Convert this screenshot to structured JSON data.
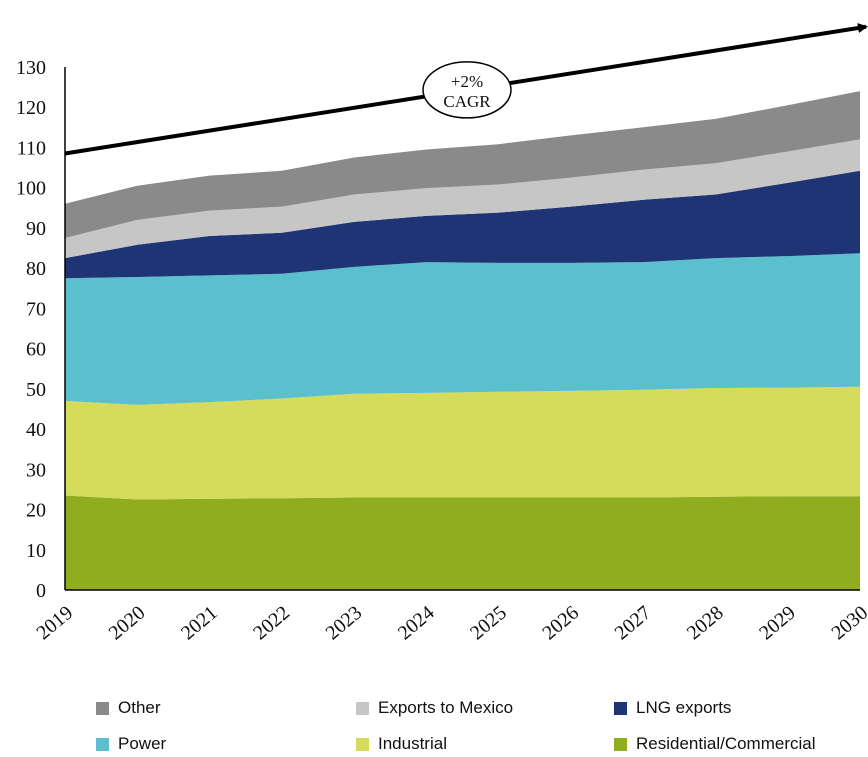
{
  "chart_data": {
    "type": "area",
    "stacked": true,
    "x": [
      "2019",
      "2020",
      "2021",
      "2022",
      "2023",
      "2024",
      "2025",
      "2026",
      "2027",
      "2028",
      "2029",
      "2030"
    ],
    "ylim": [
      0,
      130
    ],
    "yticks": [
      0,
      10,
      20,
      30,
      40,
      50,
      60,
      70,
      80,
      90,
      100,
      110,
      120,
      130
    ],
    "grid": false,
    "legend_position": "bottom",
    "series": [
      {
        "name": "Residential/Commercial",
        "color": "#8fad1f",
        "values": [
          23.5,
          22.5,
          22.7,
          22.8,
          23.0,
          23.0,
          23.0,
          23.0,
          23.0,
          23.2,
          23.3,
          23.3
        ]
      },
      {
        "name": "Industrial",
        "color": "#d5dc5b",
        "values": [
          23.5,
          23.5,
          24.0,
          24.8,
          25.8,
          26.0,
          26.3,
          26.5,
          26.8,
          27.0,
          27.0,
          27.2
        ]
      },
      {
        "name": "Power",
        "color": "#5bbfce",
        "values": [
          30.5,
          31.8,
          31.5,
          31.0,
          31.5,
          32.5,
          32.0,
          31.8,
          31.7,
          32.3,
          32.7,
          33.2
        ]
      },
      {
        "name": "LNG exports",
        "color": "#1f3474",
        "values": [
          5.0,
          8.0,
          9.8,
          10.2,
          11.2,
          11.5,
          12.5,
          14.0,
          15.5,
          15.8,
          18.2,
          20.5
        ]
      },
      {
        "name": "Exports to Mexico",
        "color": "#c6c6c6",
        "values": [
          5.0,
          6.2,
          6.3,
          6.5,
          6.8,
          6.9,
          7.0,
          7.2,
          7.5,
          7.8,
          7.8,
          7.8
        ]
      },
      {
        "name": "Other",
        "color": "#8a8a8a",
        "values": [
          8.5,
          8.5,
          8.7,
          8.9,
          9.2,
          9.6,
          10.0,
          10.5,
          10.5,
          11.0,
          11.5,
          12.0
        ]
      }
    ],
    "annotation": {
      "line1": "+2%",
      "line2": "CAGR",
      "start_value": 108.5,
      "end_value": 140
    }
  },
  "legend": {
    "items": [
      {
        "label": "Other",
        "color": "#8a8a8a"
      },
      {
        "label": "Exports to Mexico",
        "color": "#c6c6c6"
      },
      {
        "label": "LNG exports",
        "color": "#1f3474"
      },
      {
        "label": "Power",
        "color": "#5bbfce"
      },
      {
        "label": "Industrial",
        "color": "#d5dc5b"
      },
      {
        "label": "Residential/Commercial",
        "color": "#8fad1f"
      }
    ]
  }
}
